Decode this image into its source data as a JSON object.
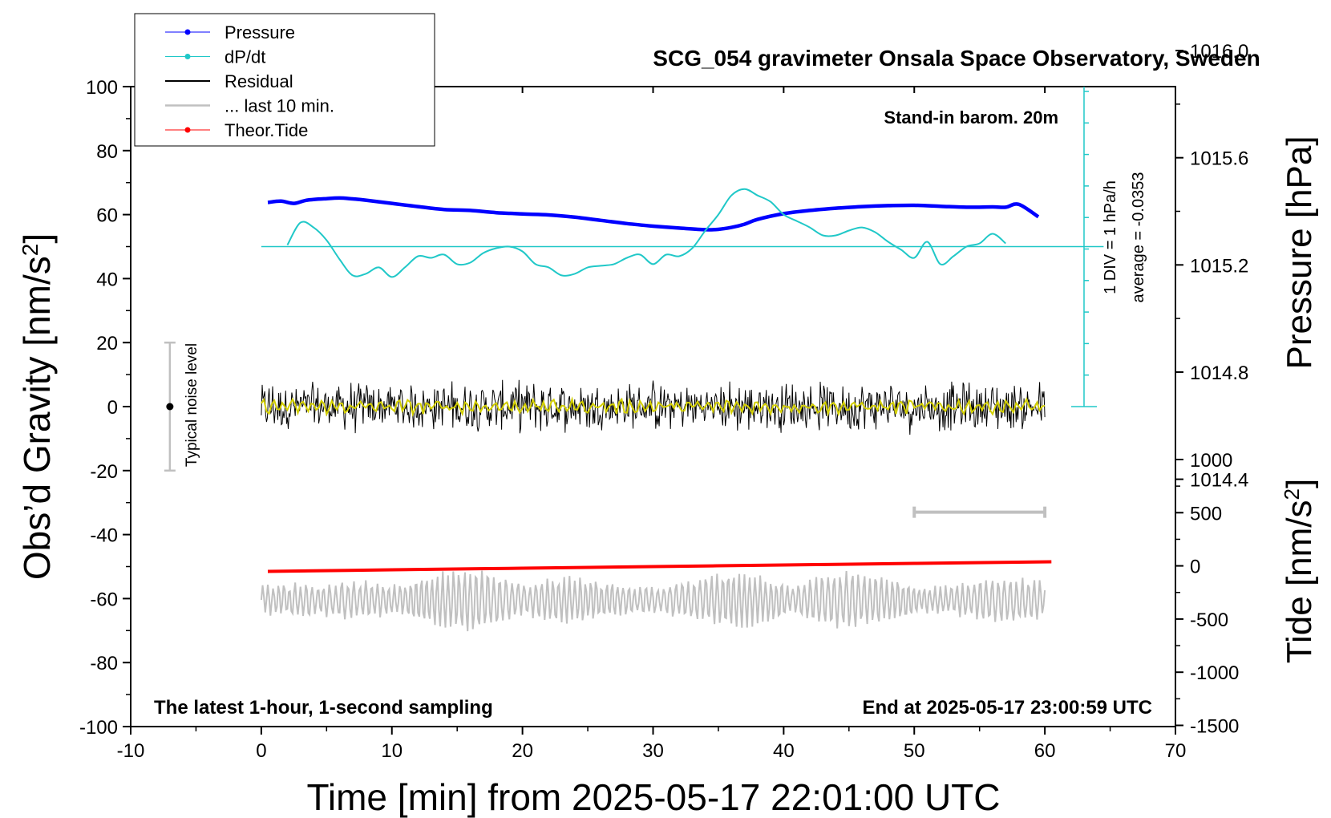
{
  "chart_data": {
    "type": "line",
    "title": "SCG_054 gravimeter Onsala Space Observatory, Sweden",
    "xlabel": "Time [min] from 2025-05-17 22:01:00 UTC",
    "ylabel": "Obs’d Gravity [nm/s",
    "ylabel_sup": "2",
    "ylabel_end": "]",
    "y2_label": "Pressure [hPa]",
    "y3_label": "Tide [nm/s",
    "y3_label_sup": "2",
    "y3_label_end": "]",
    "xlim": [
      -10,
      70
    ],
    "ylim": [
      -100,
      100
    ],
    "pressure_lim": [
      1013.6,
      1016.4
    ],
    "tide_lim": [
      -1500,
      1500
    ],
    "x_ticks": [
      -10,
      0,
      10,
      20,
      30,
      40,
      50,
      60,
      70
    ],
    "y_ticks": [
      -100,
      -80,
      -60,
      -40,
      -20,
      0,
      20,
      40,
      60,
      80,
      100
    ],
    "pressure_ticks": [
      "1014.4",
      "1014.8",
      "1015.2",
      "1015.6",
      "1016.0"
    ],
    "tide_ticks": [
      "-1500",
      "-1000",
      "-500",
      "0",
      "500",
      "1000"
    ],
    "annotations": {
      "barometer": "Stand-in barom. 20m",
      "div_label": "1 DIV = 1 hPa/h",
      "average_label": "average = -0.0353",
      "noise_label": "Typical noise level",
      "footer_left": "The latest 1-hour, 1-second sampling",
      "footer_right": "End at 2025-05-17 23:00:59 UTC"
    },
    "noise_bar": {
      "x": -7,
      "center": 0,
      "half_range": 20
    },
    "last10_marker": {
      "x_start": 50,
      "x_end": 60,
      "y": -33
    },
    "dpdt_baseline": 50,
    "legend": [
      {
        "name": "Pressure",
        "color": "#0000ff",
        "marker": true
      },
      {
        "name": "dP/dt",
        "color": "#20c8c8",
        "marker": true
      },
      {
        "name": "Residual",
        "color": "#000000",
        "marker": false
      },
      {
        "name": "... last 10 min.",
        "color": "#c0c0c0",
        "marker": false
      },
      {
        "name": "Theor.Tide",
        "color": "#ff0000",
        "marker": true
      }
    ],
    "series": [
      {
        "name": "Pressure",
        "color": "#0000ff",
        "axis": "left",
        "x": [
          0.5,
          1.5,
          2.5,
          3.5,
          5,
          6,
          7,
          8,
          10,
          12,
          14,
          16,
          18,
          20,
          22,
          24,
          26,
          28,
          30,
          32,
          34,
          35,
          36,
          37,
          38,
          40,
          42,
          44,
          46,
          48,
          50,
          52,
          54,
          56,
          57,
          58,
          59.5
        ],
        "values": [
          63.8,
          64.2,
          63.5,
          64.5,
          65,
          65.2,
          64.9,
          64.5,
          63.5,
          62.5,
          61.6,
          61.3,
          60.6,
          60.2,
          59.9,
          59.2,
          58.2,
          57.2,
          56.4,
          55.8,
          55.3,
          55.4,
          56,
          57,
          58.5,
          60.3,
          61.3,
          62,
          62.5,
          62.8,
          62.9,
          62.6,
          62.3,
          62.4,
          62.3,
          63.2,
          59.3
        ]
      },
      {
        "name": "dP/dt",
        "color": "#20c8c8",
        "axis": "left",
        "x": [
          2,
          3,
          4,
          5,
          6,
          7,
          8,
          9,
          10,
          11,
          12,
          13,
          14,
          15,
          16,
          17,
          18,
          19,
          20,
          21,
          22,
          23,
          24,
          25,
          26,
          27,
          28,
          29,
          30,
          31,
          32,
          33,
          34,
          35,
          36,
          37,
          38,
          39,
          40,
          41,
          42,
          43,
          44,
          45,
          46,
          47,
          48,
          49,
          50,
          51,
          52,
          53,
          54,
          55,
          56,
          57
        ],
        "values": [
          50.5,
          57.5,
          56,
          52,
          46,
          41,
          41.5,
          43.5,
          40.5,
          43.5,
          47,
          46.5,
          47.5,
          44.5,
          45,
          48,
          49.5,
          50,
          48.5,
          44.5,
          43.5,
          41,
          41.5,
          43.5,
          44,
          44.5,
          46.5,
          47.5,
          44.5,
          47.5,
          47,
          49.5,
          55,
          60,
          66,
          68,
          66,
          64,
          60,
          58,
          56,
          53.5,
          53.5,
          55,
          56,
          54.5,
          51.5,
          49,
          46.5,
          51.5,
          44.5,
          47,
          50,
          51,
          54,
          51
        ]
      },
      {
        "name": "Theor.Tide",
        "color": "#ff0000",
        "axis": "right",
        "x": [
          0.5,
          10,
          20,
          30,
          40,
          50,
          60.5
        ],
        "values": [
          -51.5,
          -51,
          -50.5,
          -50,
          -49.5,
          -49,
          -48.5
        ]
      },
      {
        "name": "Residual",
        "color": "#000000",
        "axis": "left",
        "x_range": [
          0,
          60
        ],
        "amplitude": 9,
        "center": 0
      },
      {
        "name": "... last 10 min.",
        "color": "#c0c0c0",
        "axis": "left",
        "x_range": [
          0,
          60
        ],
        "center": -60.5,
        "amplitude": 9
      }
    ]
  }
}
